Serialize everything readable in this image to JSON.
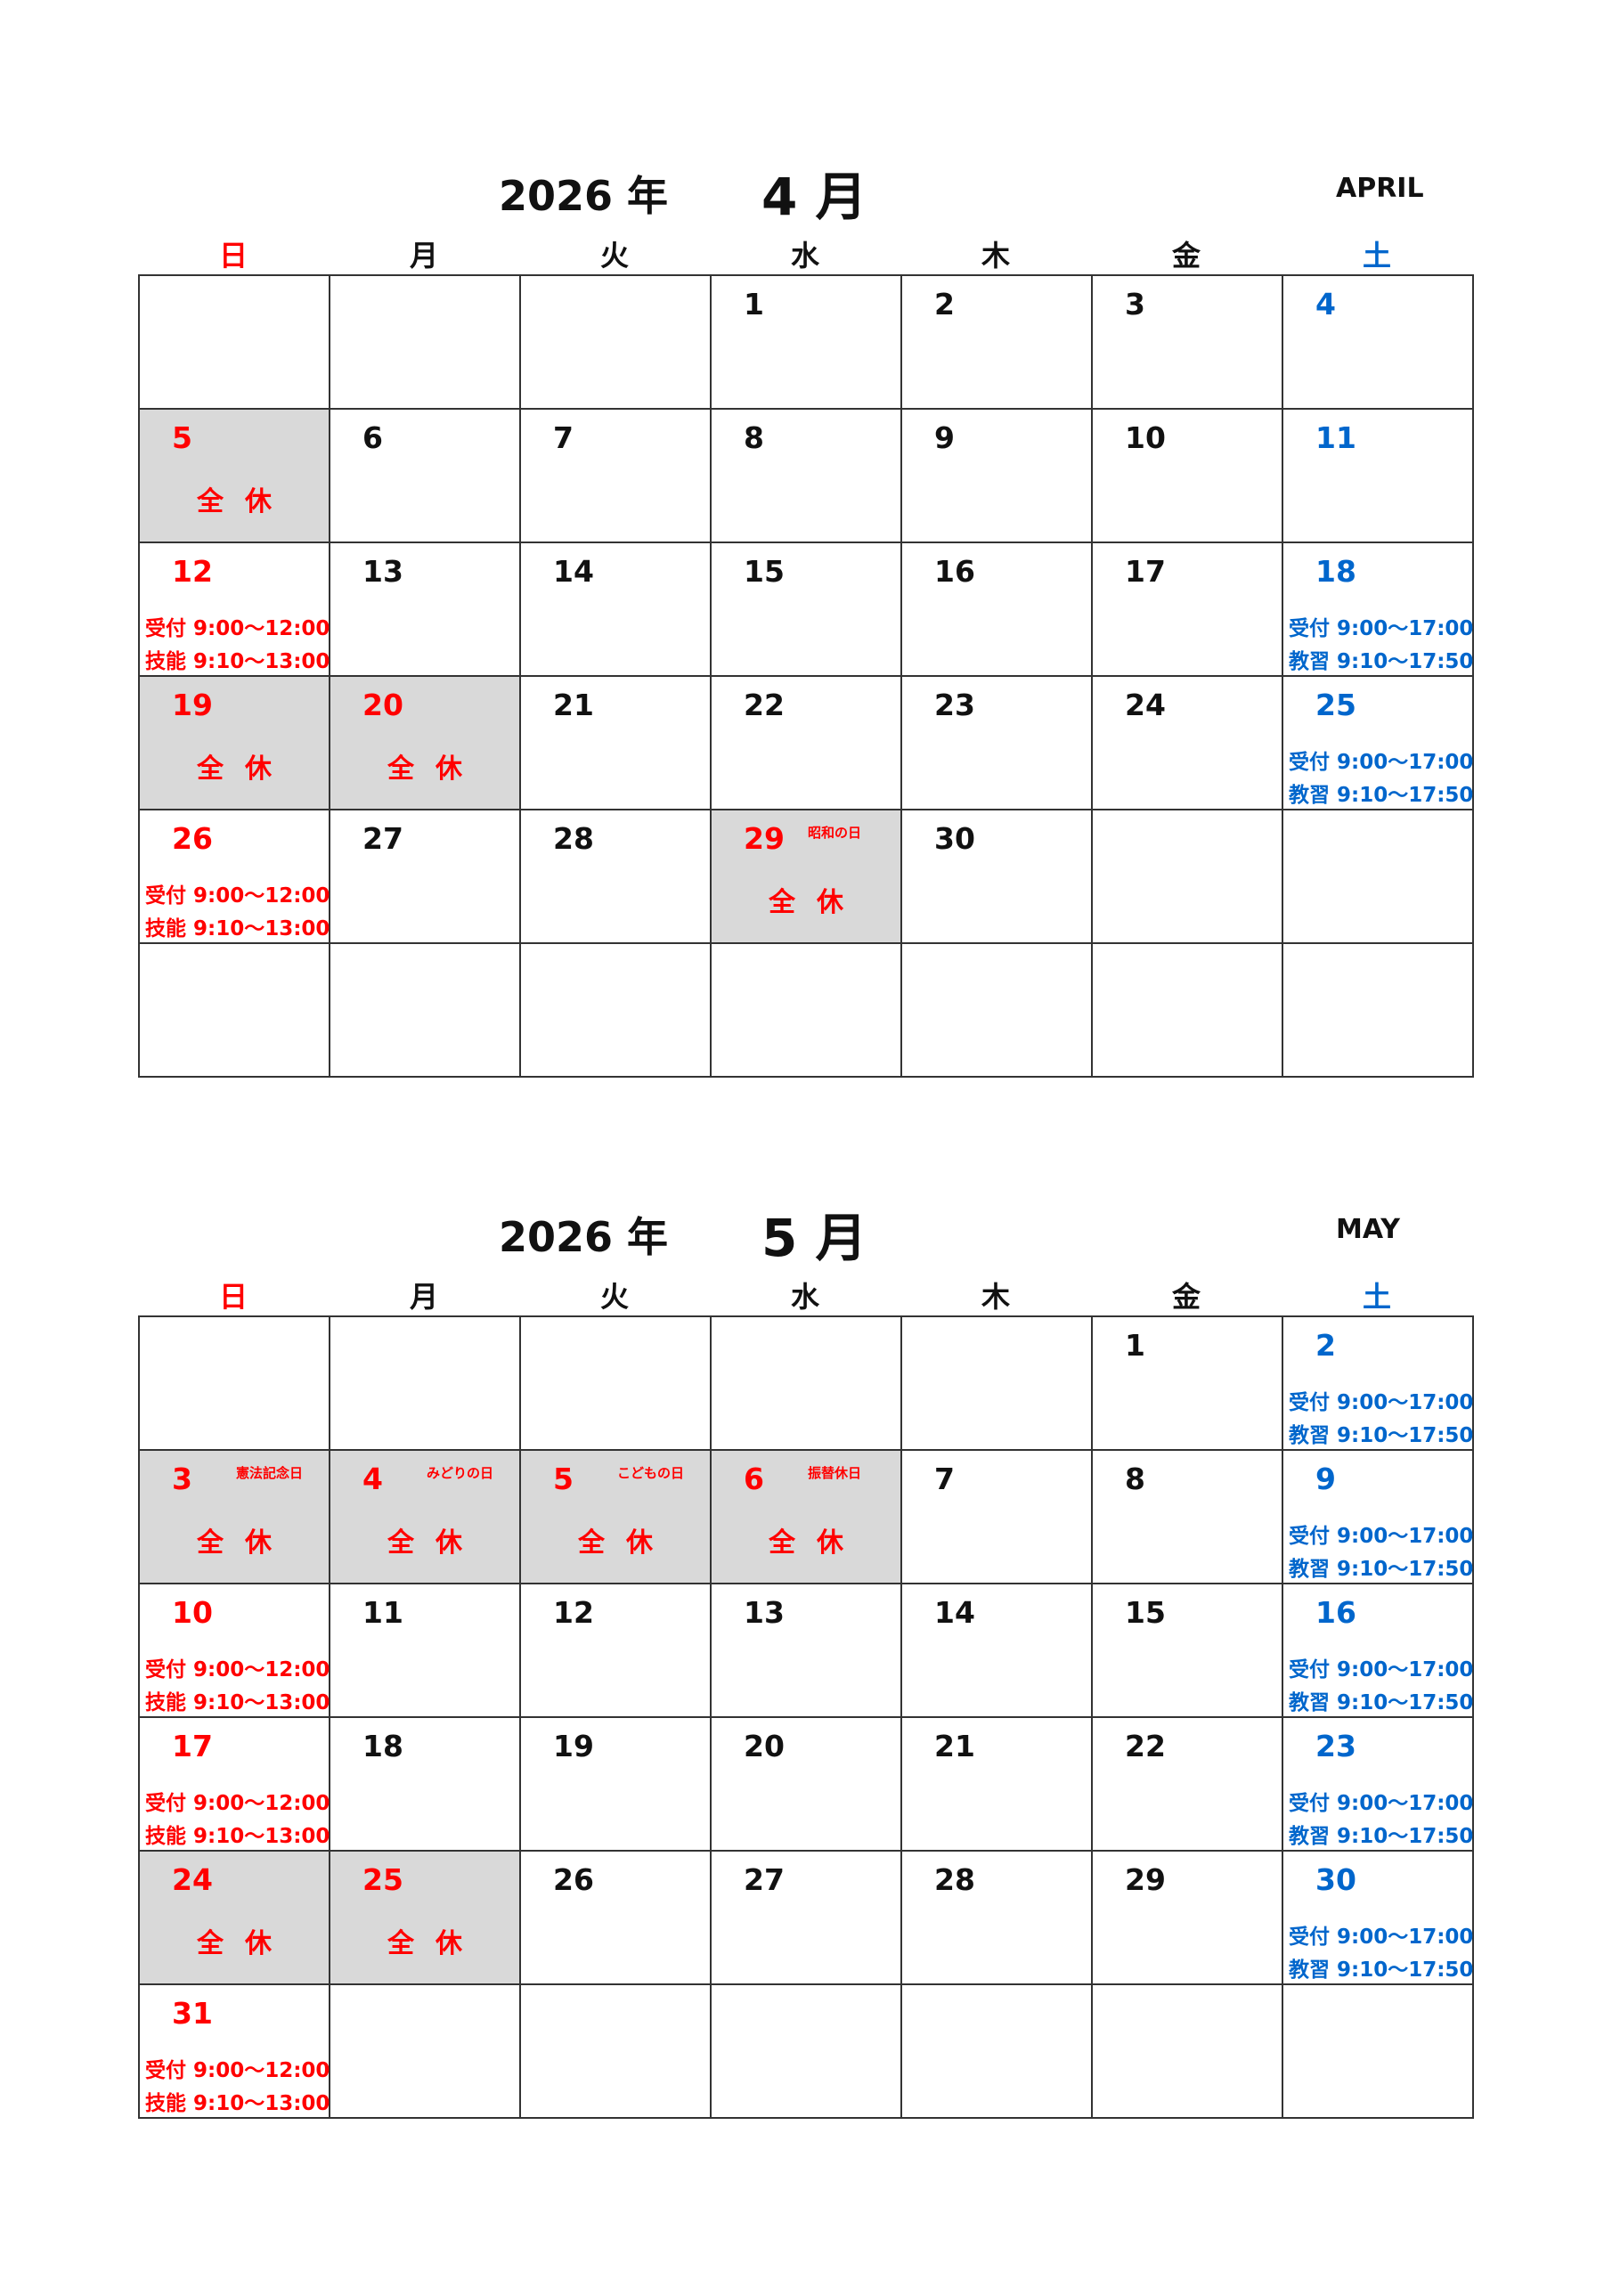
{
  "colors": {
    "sunday": "#ff0000",
    "saturday": "#0066cc",
    "closed_bg": "#d9d9d9"
  },
  "months": [
    {
      "year": "2026 年",
      "month": "4 月",
      "english": "APRIL",
      "weekdays": [
        "日",
        "月",
        "火",
        "水",
        "木",
        "金",
        "土"
      ],
      "days": [
        [
          null,
          null,
          null,
          {
            "d": "1"
          },
          {
            "d": "2"
          },
          {
            "d": "3"
          },
          {
            "d": "4",
            "c": "blue"
          }
        ],
        [
          {
            "d": "5",
            "c": "red",
            "off": "全休"
          },
          {
            "d": "6"
          },
          {
            "d": "7"
          },
          {
            "d": "8"
          },
          {
            "d": "9"
          },
          {
            "d": "10"
          },
          {
            "d": "11",
            "c": "blue"
          }
        ],
        [
          {
            "d": "12",
            "c": "red",
            "h": [
              "受付 9:00～12:00",
              "技能 9:10～13:00"
            ]
          },
          {
            "d": "13"
          },
          {
            "d": "14"
          },
          {
            "d": "15"
          },
          {
            "d": "16"
          },
          {
            "d": "17"
          },
          {
            "d": "18",
            "c": "blue",
            "h": [
              "受付 9:00～17:00",
              "教習 9:10～17:50"
            ]
          }
        ],
        [
          {
            "d": "19",
            "c": "red",
            "off": "全休"
          },
          {
            "d": "20",
            "c": "red",
            "off": "全休"
          },
          {
            "d": "21"
          },
          {
            "d": "22"
          },
          {
            "d": "23"
          },
          {
            "d": "24"
          },
          {
            "d": "25",
            "c": "blue",
            "h": [
              "受付 9:00～17:00",
              "教習 9:10～17:50"
            ]
          }
        ],
        [
          {
            "d": "26",
            "c": "red",
            "h": [
              "受付 9:00～12:00",
              "技能 9:10～13:00"
            ]
          },
          {
            "d": "27"
          },
          {
            "d": "28"
          },
          {
            "d": "29",
            "c": "red",
            "off": "全休",
            "hol": "昭和の日"
          },
          {
            "d": "30"
          },
          null,
          null
        ],
        [
          null,
          null,
          null,
          null,
          null,
          null,
          null
        ]
      ]
    },
    {
      "year": "2026 年",
      "month": "5 月",
      "english": "MAY",
      "weekdays": [
        "日",
        "月",
        "火",
        "水",
        "木",
        "金",
        "土"
      ],
      "days": [
        [
          null,
          null,
          null,
          null,
          null,
          {
            "d": "1"
          },
          {
            "d": "2",
            "c": "blue",
            "h": [
              "受付 9:00～17:00",
              "教習 9:10～17:50"
            ]
          }
        ],
        [
          {
            "d": "3",
            "c": "red",
            "off": "全休",
            "hol": "憲法記念日"
          },
          {
            "d": "4",
            "c": "red",
            "off": "全休",
            "hol": "みどりの日"
          },
          {
            "d": "5",
            "c": "red",
            "off": "全休",
            "hol": "こどもの日"
          },
          {
            "d": "6",
            "c": "red",
            "off": "全休",
            "hol": "振替休日"
          },
          {
            "d": "7"
          },
          {
            "d": "8"
          },
          {
            "d": "9",
            "c": "blue",
            "h": [
              "受付 9:00～17:00",
              "教習 9:10～17:50"
            ]
          }
        ],
        [
          {
            "d": "10",
            "c": "red",
            "h": [
              "受付 9:00～12:00",
              "技能 9:10～13:00"
            ]
          },
          {
            "d": "11"
          },
          {
            "d": "12"
          },
          {
            "d": "13"
          },
          {
            "d": "14"
          },
          {
            "d": "15"
          },
          {
            "d": "16",
            "c": "blue",
            "h": [
              "受付 9:00～17:00",
              "教習 9:10～17:50"
            ]
          }
        ],
        [
          {
            "d": "17",
            "c": "red",
            "h": [
              "受付 9:00～12:00",
              "技能 9:10～13:00"
            ]
          },
          {
            "d": "18"
          },
          {
            "d": "19"
          },
          {
            "d": "20"
          },
          {
            "d": "21"
          },
          {
            "d": "22"
          },
          {
            "d": "23",
            "c": "blue",
            "h": [
              "受付 9:00～17:00",
              "教習 9:10～17:50"
            ]
          }
        ],
        [
          {
            "d": "24",
            "c": "red",
            "off": "全休"
          },
          {
            "d": "25",
            "c": "red",
            "off": "全休"
          },
          {
            "d": "26"
          },
          {
            "d": "27"
          },
          {
            "d": "28"
          },
          {
            "d": "29"
          },
          {
            "d": "30",
            "c": "blue",
            "h": [
              "受付 9:00～17:00",
              "教習 9:10～17:50"
            ]
          }
        ],
        [
          {
            "d": "31",
            "c": "red",
            "h": [
              "受付 9:00～12:00",
              "技能 9:10～13:00"
            ]
          },
          null,
          null,
          null,
          null,
          null,
          null
        ]
      ]
    }
  ]
}
